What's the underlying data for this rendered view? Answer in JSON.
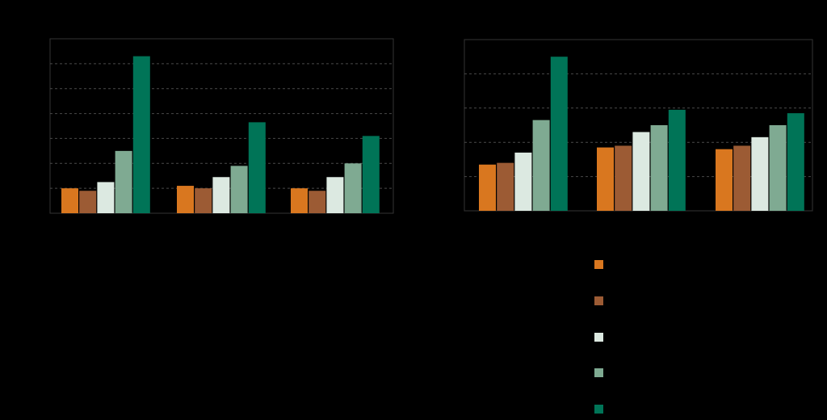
{
  "chart_data": [
    {
      "type": "bar",
      "title": "",
      "xlabel": "",
      "ylabel": "",
      "ylim": [
        0,
        70
      ],
      "gridlines": true,
      "y_ticks": [],
      "categories": [
        "",
        "",
        ""
      ],
      "series": [
        {
          "color": "#D9771F",
          "values": [
            10,
            11,
            10
          ]
        },
        {
          "color": "#9C5B34",
          "values": [
            9,
            10,
            9
          ]
        },
        {
          "color": "#DCE9E1",
          "values": [
            12.5,
            14.5,
            14.5
          ]
        },
        {
          "color": "#7FAA92",
          "values": [
            25,
            19,
            20
          ]
        },
        {
          "color": "#007457",
          "values": [
            63,
            36.5,
            31
          ]
        }
      ]
    },
    {
      "type": "bar",
      "title": "",
      "xlabel": "",
      "ylabel": "",
      "ylim": [
        0,
        5
      ],
      "gridlines": true,
      "y_ticks": [],
      "categories": [
        "",
        "",
        ""
      ],
      "series": [
        {
          "color": "#D9771F",
          "values": [
            1.35,
            1.85,
            1.8
          ]
        },
        {
          "color": "#9C5B34",
          "values": [
            1.4,
            1.9,
            1.9
          ]
        },
        {
          "color": "#DCE9E1",
          "values": [
            1.7,
            2.3,
            2.15
          ]
        },
        {
          "color": "#7FAA92",
          "values": [
            2.65,
            2.5,
            2.5
          ]
        },
        {
          "color": "#007457",
          "values": [
            4.5,
            2.95,
            2.85
          ]
        }
      ]
    }
  ],
  "legend": {
    "placement": "bottom-right",
    "items": [
      {
        "label": "",
        "color": "#D9771F"
      },
      {
        "label": "",
        "color": "#9C5B34"
      },
      {
        "label": "",
        "color": "#DCE9E1"
      },
      {
        "label": "",
        "color": "#7FAA92"
      },
      {
        "label": "",
        "color": "#007457"
      }
    ]
  }
}
